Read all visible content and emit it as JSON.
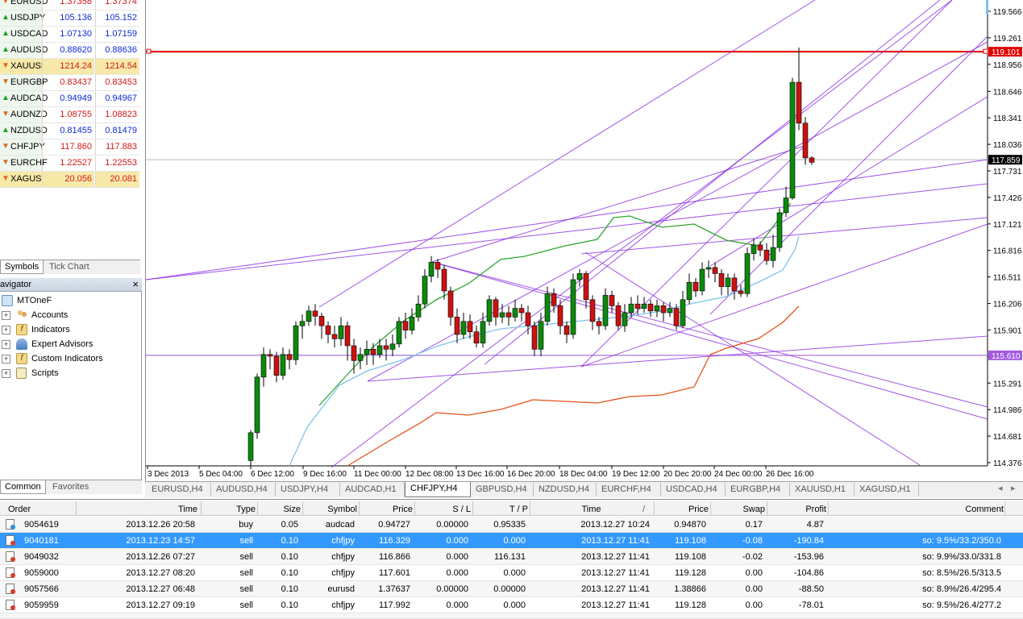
{
  "market_watch": {
    "rows": [
      {
        "symbol": "EURUSD",
        "bid": "1.37358",
        "ask": "1.37374",
        "dir": "down",
        "hl": false,
        "bidc": "red",
        "askc": "red"
      },
      {
        "symbol": "USDJPY",
        "bid": "105.136",
        "ask": "105.152",
        "dir": "up",
        "hl": false,
        "bidc": "blue",
        "askc": "blue"
      },
      {
        "symbol": "USDCAD",
        "bid": "1.07130",
        "ask": "1.07159",
        "dir": "up",
        "hl": false,
        "bidc": "blue",
        "askc": "blue"
      },
      {
        "symbol": "AUDUSD",
        "bid": "0.88620",
        "ask": "0.88636",
        "dir": "up",
        "hl": false,
        "bidc": "blue",
        "askc": "blue"
      },
      {
        "symbol": "XAUUSD",
        "bid": "1214.24",
        "ask": "1214.54",
        "dir": "down",
        "hl": true,
        "bidc": "red",
        "askc": "red"
      },
      {
        "symbol": "EURGBP",
        "bid": "0.83437",
        "ask": "0.83453",
        "dir": "down",
        "hl": false,
        "bidc": "red",
        "askc": "red"
      },
      {
        "symbol": "AUDCAD",
        "bid": "0.94949",
        "ask": "0.94967",
        "dir": "up",
        "hl": false,
        "bidc": "blue",
        "askc": "blue"
      },
      {
        "symbol": "AUDNZD",
        "bid": "1.08755",
        "ask": "1.08823",
        "dir": "down",
        "hl": false,
        "bidc": "red",
        "askc": "red"
      },
      {
        "symbol": "NZDUSD",
        "bid": "0.81455",
        "ask": "0.81479",
        "dir": "up",
        "hl": false,
        "bidc": "blue",
        "askc": "blue"
      },
      {
        "symbol": "CHFJPY",
        "bid": "117.860",
        "ask": "117.883",
        "dir": "down",
        "hl": false,
        "bidc": "red",
        "askc": "red"
      },
      {
        "symbol": "EURCHF",
        "bid": "1.22527",
        "ask": "1.22553",
        "dir": "down",
        "hl": false,
        "bidc": "red",
        "askc": "red"
      },
      {
        "symbol": "XAGUSD",
        "bid": "20.056",
        "ask": "20.081",
        "dir": "down",
        "hl": true,
        "bidc": "red",
        "askc": "red"
      }
    ],
    "tabs": [
      "Symbols",
      "Tick Chart"
    ]
  },
  "navigator": {
    "title": "Navigator",
    "root": "MTOneF",
    "items": [
      "Accounts",
      "Indicators",
      "Expert Advisors",
      "Custom Indicators",
      "Scripts"
    ],
    "tabs": [
      "Common",
      "Favorites"
    ]
  },
  "chart": {
    "symbol_period": "CHFJPY,H4",
    "price_labels": [
      "119.566",
      "119.261",
      "118.956",
      "118.646",
      "118.341",
      "118.036",
      "117.731",
      "117.426",
      "117.121",
      "116.816",
      "116.511",
      "116.206",
      "115.901",
      "115.596",
      "115.291",
      "114.986",
      "114.681",
      "114.376"
    ],
    "current_bid": "117.859",
    "hline_red": "119.101",
    "hline_purple": "115.610",
    "time_labels": [
      "3 Dec 2013",
      "5 Dec 04:00",
      "6 Dec 12:00",
      "9 Dec 16:00",
      "11 Dec 00:00",
      "12 Dec 08:00",
      "13 Dec 16:00",
      "16 Dec 20:00",
      "18 Dec 04:00",
      "19 Dec 12:00",
      "20 Dec 20:00",
      "24 Dec 00:00",
      "26 Dec 16:00"
    ],
    "colors": {
      "bull": "#0b8a0b",
      "bear": "#cc1111",
      "red_line": "#e00000",
      "purple_line": "#8a2be2",
      "ma_fast": "#2fa52f",
      "ma_mid": "#7fc4ee",
      "ma_slow": "#e8501a"
    }
  },
  "chart_tabs": [
    "EURUSD,H4",
    "AUDUSD,H4",
    "USDJPY,H4",
    "AUDCAD,H1",
    "CHFJPY,H4",
    "GBPUSD,H4",
    "NZDUSD,H4",
    "EURCHF,H4",
    "USDCAD,H4",
    "EURGBP,H4",
    "XAUUSD,H1",
    "XAGUSD,H1"
  ],
  "active_chart_tab": "CHFJPY,H4",
  "terminal": {
    "headers": [
      "Order",
      "Time",
      "Type",
      "Size",
      "Symbol",
      "Price",
      "S / L",
      "T / P",
      "Time",
      "Price",
      "Swap",
      "Profit",
      "Comment"
    ],
    "rows": [
      {
        "order": "9054619",
        "time": "2013.12.26 20:58",
        "type": "buy",
        "size": "0.05",
        "symbol": "audcad",
        "price": "0.94727",
        "sl": "0.00000",
        "tp": "0.95335",
        "time2": "2013.12.27 10:24",
        "price2": "0.94870",
        "swap": "0.17",
        "profit": "4.87",
        "comment": ""
      },
      {
        "order": "9040181",
        "time": "2013.12.23 14:57",
        "type": "sell",
        "size": "0.10",
        "symbol": "chfjpy",
        "price": "116.329",
        "sl": "0.000",
        "tp": "0.000",
        "time2": "2013.12.27 11:41",
        "price2": "119.108",
        "swap": "-0.08",
        "profit": "-190.84",
        "comment": "so: 9.5%/33.2/350.0"
      },
      {
        "order": "9049032",
        "time": "2013.12.26 07:27",
        "type": "sell",
        "size": "0.10",
        "symbol": "chfjpy",
        "price": "116.866",
        "sl": "0.000",
        "tp": "116.131",
        "time2": "2013.12.27 11:41",
        "price2": "119.108",
        "swap": "-0.02",
        "profit": "-153.96",
        "comment": "so: 9.9%/33.0/331.8"
      },
      {
        "order": "9059000",
        "time": "2013.12.27 08:20",
        "type": "sell",
        "size": "0.10",
        "symbol": "chfjpy",
        "price": "117.601",
        "sl": "0.000",
        "tp": "0.000",
        "time2": "2013.12.27 11:41",
        "price2": "119.128",
        "swap": "0.00",
        "profit": "-104.86",
        "comment": "so: 8.5%/26.5/313.5"
      },
      {
        "order": "9057566",
        "time": "2013.12.27 06:48",
        "type": "sell",
        "size": "0.10",
        "symbol": "eurusd",
        "price": "1.37637",
        "sl": "0.00000",
        "tp": "0.00000",
        "time2": "2013.12.27 11:41",
        "price2": "1.38866",
        "swap": "0.00",
        "profit": "-88.50",
        "comment": "so: 8.9%/26.4/295.4"
      },
      {
        "order": "9059959",
        "time": "2013.12.27 09:19",
        "type": "sell",
        "size": "0.10",
        "symbol": "chfjpy",
        "price": "117.992",
        "sl": "0.000",
        "tp": "0.000",
        "time2": "2013.12.27 11:41",
        "price2": "119.128",
        "swap": "0.00",
        "profit": "-78.01",
        "comment": "so: 9.5%/26.4/277.2"
      }
    ],
    "selected_row": 1
  }
}
